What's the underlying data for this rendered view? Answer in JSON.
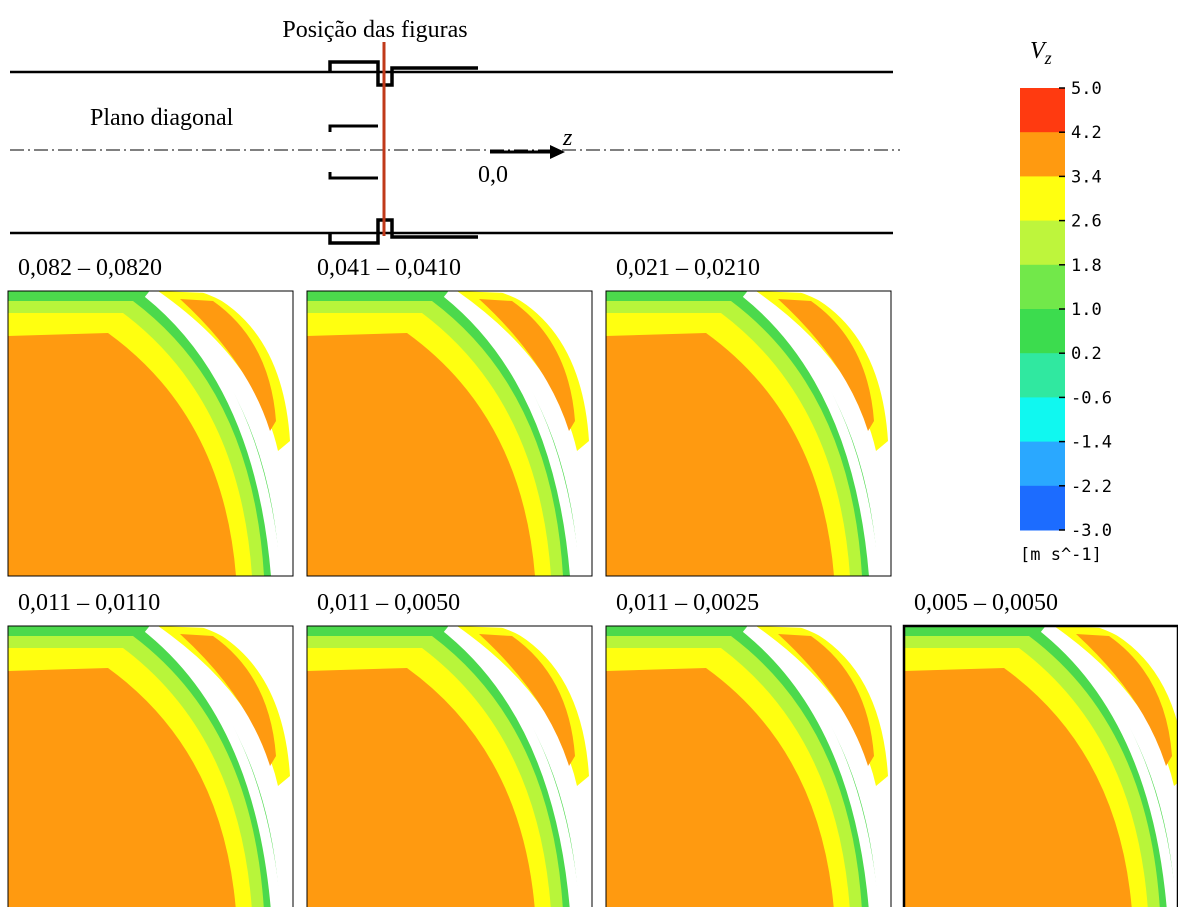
{
  "header": {
    "title": "Posição das figuras",
    "plane_label": "Plano diagonal",
    "axis_label": "z",
    "origin_label": "0,0"
  },
  "panels": [
    {
      "label": "0,082 – 0,0820"
    },
    {
      "label": "0,041 – 0,0410"
    },
    {
      "label": "0,021 – 0,0210"
    },
    {
      "label": "0,011 – 0,0110"
    },
    {
      "label": "0,011 – 0,0050"
    },
    {
      "label": "0,011 – 0,0025"
    },
    {
      "label": "0,005 – 0,0050"
    }
  ],
  "colorbar": {
    "symbol": "V",
    "subscript": "z",
    "unit": "[m s^-1]",
    "ticks": [
      "5.0",
      "4.2",
      "3.4",
      "2.6",
      "1.8",
      "1.0",
      "0.2",
      "-0.6",
      "-1.4",
      "-2.2",
      "-3.0"
    ],
    "colors": [
      "#ff3a10",
      "#ff9a10",
      "#ffff10",
      "#bef53c",
      "#72e84a",
      "#3cdc4e",
      "#30e8a0",
      "#10f8f0",
      "#2aa8ff",
      "#1c6cff",
      "#1028ff"
    ]
  }
}
